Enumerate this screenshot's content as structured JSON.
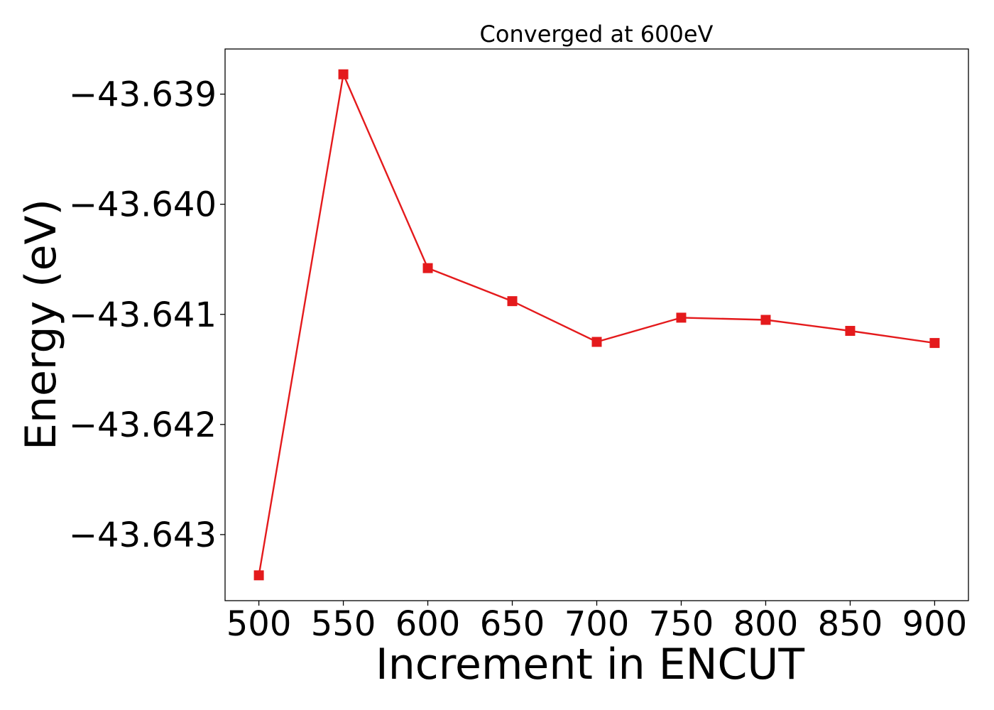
{
  "chart_data": {
    "type": "line",
    "title": "Converged at 600eV",
    "xlabel": "Increment in ENCUT",
    "ylabel": "Energy (eV)",
    "x": [
      500,
      550,
      600,
      650,
      700,
      750,
      800,
      850,
      900
    ],
    "series": [
      {
        "values": [
          -43.64337,
          -43.63882,
          -43.64058,
          -43.64088,
          -43.64125,
          -43.64103,
          -43.64105,
          -43.64115,
          -43.64126
        ],
        "color": "#e41a1c",
        "marker": "square"
      }
    ],
    "xticks": [
      500,
      550,
      600,
      650,
      700,
      750,
      800,
      850,
      900
    ],
    "xtick_labels": [
      "500",
      "550",
      "600",
      "650",
      "700",
      "750",
      "800",
      "850",
      "900"
    ],
    "yticks": [
      -43.643,
      -43.642,
      -43.641,
      -43.64,
      -43.639
    ],
    "ytick_labels": [
      "−43.643",
      "−43.642",
      "−43.641",
      "−43.640",
      "−43.639"
    ],
    "xlim": [
      480,
      920
    ],
    "ylim": [
      -43.6436,
      -43.63859
    ],
    "grid": false,
    "legend": "none"
  }
}
